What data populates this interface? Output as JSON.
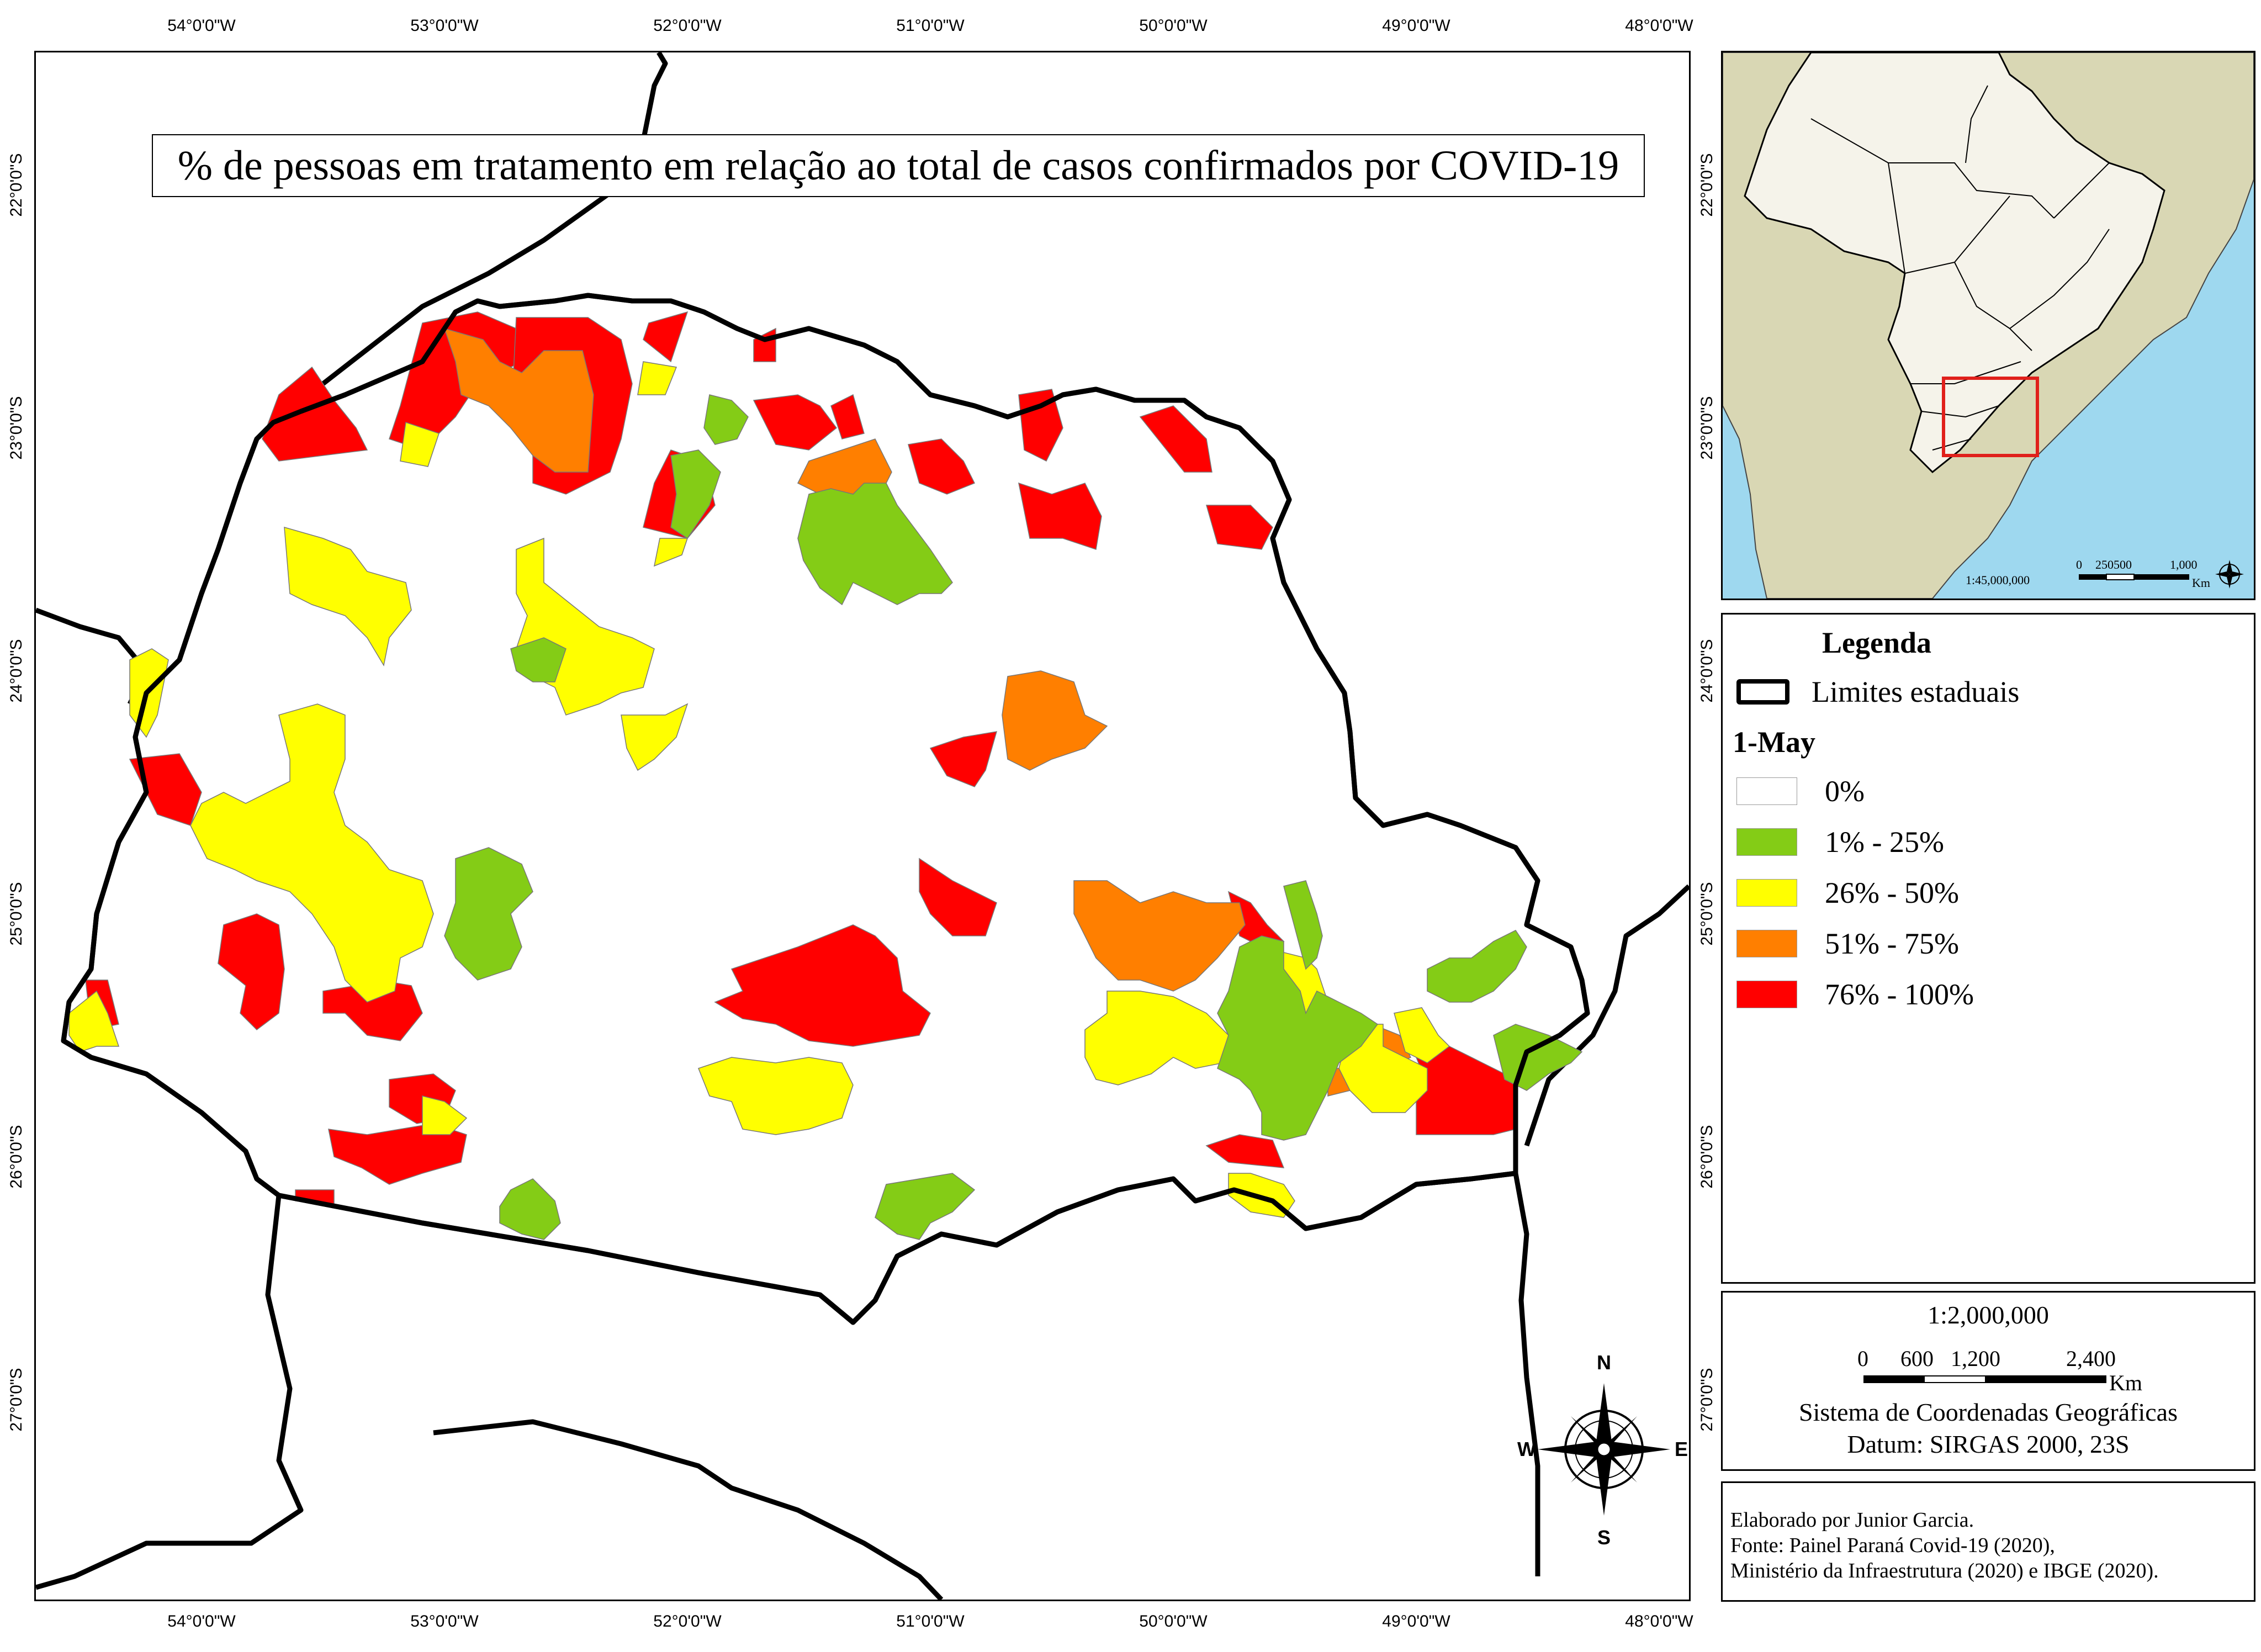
{
  "title": "% de pessoas em tratamento em relação ao total de casos confirmados por COVID-19",
  "graticule": {
    "longitudes": [
      "54°0'0\"W",
      "53°0'0\"W",
      "52°0'0\"W",
      "51°0'0\"W",
      "50°0'0\"W",
      "49°0'0\"W",
      "48°0'0\"W"
    ],
    "latitudes": [
      "22°0'0\"S",
      "23°0'0\"S",
      "24°0'0\"S",
      "25°0'0\"S",
      "26°0'0\"S",
      "27°0'0\"S"
    ]
  },
  "inset": {
    "scale_text": "1:45,000,000",
    "scale_ticks": [
      "0",
      "250500",
      "1,000"
    ],
    "scale_unit": "Km"
  },
  "legend": {
    "heading": "Legenda",
    "boundary_label": "Limites estaduais",
    "date_label": "1-May",
    "classes": [
      {
        "label": "0%",
        "color": "#ffffff"
      },
      {
        "label": "1% - 25%",
        "color": "#84cc16"
      },
      {
        "label": "26% - 50%",
        "color": "#ffff00"
      },
      {
        "label": "51% - 75%",
        "color": "#ff7f00"
      },
      {
        "label": "76% - 100%",
        "color": "#ff0000"
      }
    ]
  },
  "scale": {
    "ratio": "1:2,000,000",
    "ticks": [
      "0",
      "600",
      "1,200",
      "2,400"
    ],
    "unit": "Km",
    "crs": "Sistema de Coordenadas Geográficas",
    "datum": "Datum: SIRGAS 2000, 23S"
  },
  "credits": {
    "line1": "Elaborado por Junior Garcia.",
    "line2": "Fonte: Painel Paraná Covid-19 (2020),",
    "line3": "Ministério da Infraestrutura (2020) e IBGE (2020)."
  },
  "north_arrow": {
    "n": "N",
    "s": "S",
    "e": "E",
    "w": "W"
  },
  "colors": {
    "ocean": "#9ed8ef",
    "land_brazil": "#f5f3ea",
    "land_other": "#d9d7b4",
    "inset_box": "#e0201b"
  }
}
